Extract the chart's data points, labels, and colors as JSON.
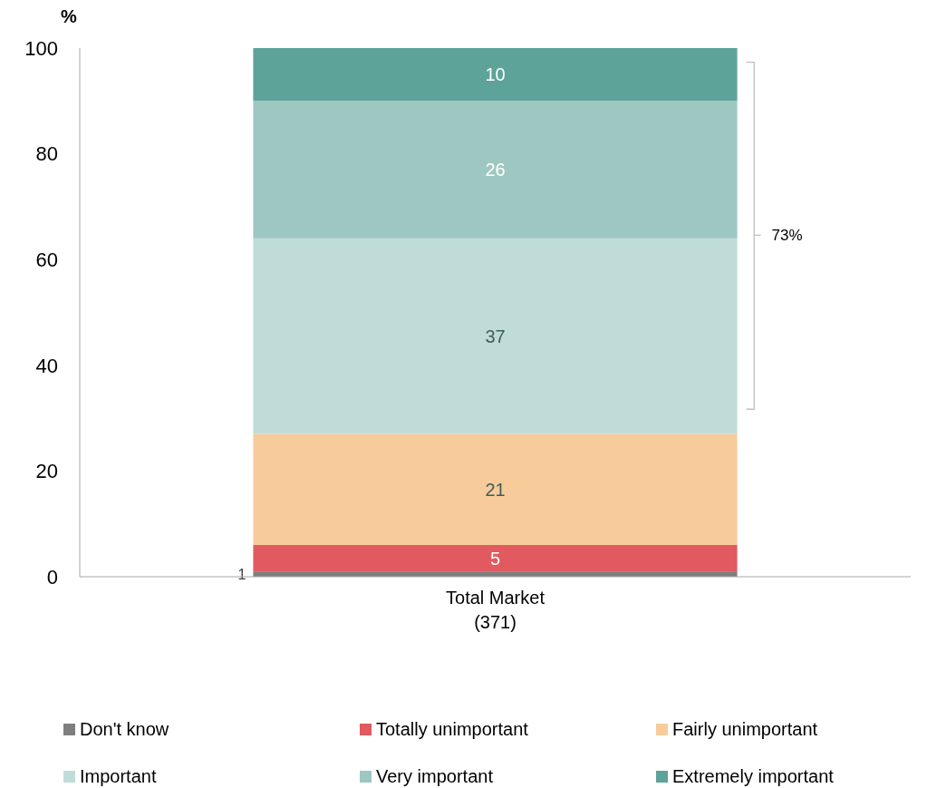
{
  "chart_data": {
    "type": "bar",
    "stacked": true,
    "ylabel": "%",
    "categories": [
      "Total Market\n(371)"
    ],
    "series": [
      {
        "name": "Don't know",
        "color": "#7f7f7f",
        "values": [
          1
        ]
      },
      {
        "name": "Totally unimportant",
        "color": "#e05a5f",
        "values": [
          5
        ]
      },
      {
        "name": "Fairly unimportant",
        "color": "#f8cb9a",
        "values": [
          21
        ]
      },
      {
        "name": "Important",
        "color": "#c0dcd8",
        "values": [
          37
        ]
      },
      {
        "name": "Very important",
        "color": "#9fc7c2",
        "values": [
          26
        ]
      },
      {
        "name": "Extremely important",
        "color": "#5da399",
        "values": [
          10
        ]
      }
    ],
    "ylim": [
      0,
      100
    ],
    "yticks": [
      0,
      20,
      40,
      60,
      80,
      100
    ],
    "data_labels": true,
    "legend": "bottom",
    "grid": false,
    "annotations": [
      "73%"
    ]
  }
}
